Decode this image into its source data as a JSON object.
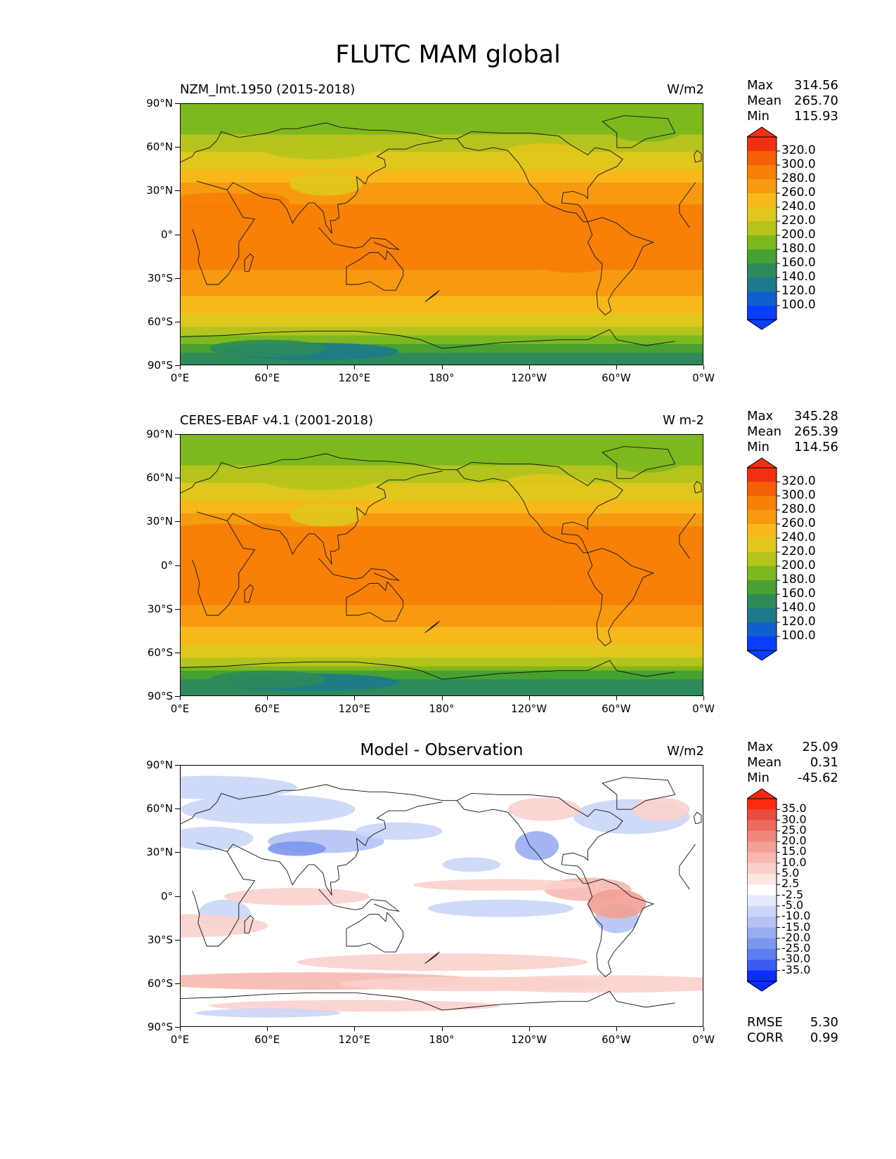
{
  "title": "FLUTC MAM global",
  "axes": {
    "lat_labels": [
      "90°N",
      "60°N",
      "30°N",
      "0°",
      "30°S",
      "60°S",
      "90°S"
    ],
    "lon_labels": [
      "0°E",
      "60°E",
      "120°E",
      "180°",
      "120°W",
      "60°W",
      "0°W"
    ]
  },
  "panels": [
    {
      "id": "model",
      "title": "NZM_lmt.1950 (2015-2018)",
      "units": "W/m2",
      "stats": {
        "max_label": "Max",
        "max": "314.56",
        "mean_label": "Mean",
        "mean": "265.70",
        "min_label": "Min",
        "min": "115.93"
      },
      "colorbar_ticks": [
        "320.0",
        "300.0",
        "280.0",
        "260.0",
        "240.0",
        "220.0",
        "200.0",
        "180.0",
        "160.0",
        "140.0",
        "120.0",
        "100.0"
      ]
    },
    {
      "id": "obs",
      "title": "CERES-EBAF v4.1 (2001-2018)",
      "units": "W m-2",
      "stats": {
        "max_label": "Max",
        "max": "345.28",
        "mean_label": "Mean",
        "mean": "265.39",
        "min_label": "Min",
        "min": "114.56"
      },
      "colorbar_ticks": [
        "320.0",
        "300.0",
        "280.0",
        "260.0",
        "240.0",
        "220.0",
        "200.0",
        "180.0",
        "160.0",
        "140.0",
        "120.0",
        "100.0"
      ]
    },
    {
      "id": "diff",
      "title": "Model - Observation",
      "units": "W/m2",
      "stats": {
        "max_label": "Max",
        "max": "25.09",
        "mean_label": "Mean",
        "mean": "0.31",
        "min_label": "Min",
        "min": "-45.62"
      },
      "colorbar_ticks": [
        "35.0",
        "30.0",
        "25.0",
        "20.0",
        "15.0",
        "10.0",
        "5.0",
        "2.5",
        "-2.5",
        "-5.0",
        "-10.0",
        "-15.0",
        "-20.0",
        "-25.0",
        "-30.0",
        "-35.0"
      ],
      "metrics": {
        "rmse_label": "RMSE",
        "rmse": "5.30",
        "corr_label": "CORR",
        "corr": "0.99"
      }
    }
  ],
  "chart_data": [
    {
      "type": "heatmap",
      "title": "NZM_lmt.1950 (2015-2018)",
      "units": "W/m2",
      "latitudes": [
        90,
        75,
        60,
        45,
        30,
        15,
        0,
        -15,
        -30,
        -45,
        -60,
        -75,
        -90
      ],
      "zonal_mean_approx": [
        185,
        195,
        215,
        245,
        275,
        285,
        285,
        285,
        275,
        250,
        230,
        170,
        140
      ],
      "levels": [
        100,
        120,
        140,
        160,
        180,
        200,
        220,
        240,
        260,
        280,
        300,
        320
      ],
      "colors": [
        "#0b3dff",
        "#0f5fcc",
        "#1c7a8a",
        "#2e8a5a",
        "#48a031",
        "#7cb81e",
        "#b5c41c",
        "#e0c71d",
        "#f7b81c",
        "#f79a10",
        "#f68008",
        "#f55f05",
        "#f03010"
      ],
      "stats": {
        "max": 314.56,
        "mean": 265.7,
        "min": 115.93
      }
    },
    {
      "type": "heatmap",
      "title": "CERES-EBAF v4.1 (2001-2018)",
      "units": "W m-2",
      "latitudes": [
        90,
        75,
        60,
        45,
        30,
        15,
        0,
        -15,
        -30,
        -45,
        -60,
        -75,
        -90
      ],
      "zonal_mean_approx": [
        185,
        195,
        215,
        245,
        278,
        290,
        285,
        288,
        275,
        250,
        230,
        165,
        138
      ],
      "levels": [
        100,
        120,
        140,
        160,
        180,
        200,
        220,
        240,
        260,
        280,
        300,
        320
      ],
      "colors": [
        "#0b3dff",
        "#0f5fcc",
        "#1c7a8a",
        "#2e8a5a",
        "#48a031",
        "#7cb81e",
        "#b5c41c",
        "#e0c71d",
        "#f7b81c",
        "#f79a10",
        "#f68008",
        "#f55f05",
        "#f03010"
      ],
      "stats": {
        "max": 345.28,
        "mean": 265.39,
        "min": 114.56
      }
    },
    {
      "type": "heatmap",
      "title": "Model - Observation",
      "units": "W/m2",
      "levels": [
        -35,
        -30,
        -25,
        -20,
        -15,
        -10,
        -5,
        -2.5,
        2.5,
        5,
        10,
        15,
        20,
        25,
        30,
        35
      ],
      "colors": [
        "#0a2cff",
        "#3a5cf0",
        "#5c7ef0",
        "#7c96ee",
        "#98acf0",
        "#b4c2f4",
        "#cad6f8",
        "#e4eafc",
        "#ffffff",
        "#fce6e4",
        "#f9d0cc",
        "#f6b8b0",
        "#f3a096",
        "#f0857a",
        "#ec6a5e",
        "#e84c40",
        "#ff2a10"
      ],
      "stats": {
        "max": 25.09,
        "mean": 0.31,
        "min": -45.62,
        "rmse": 5.3,
        "corr": 0.99
      }
    }
  ]
}
